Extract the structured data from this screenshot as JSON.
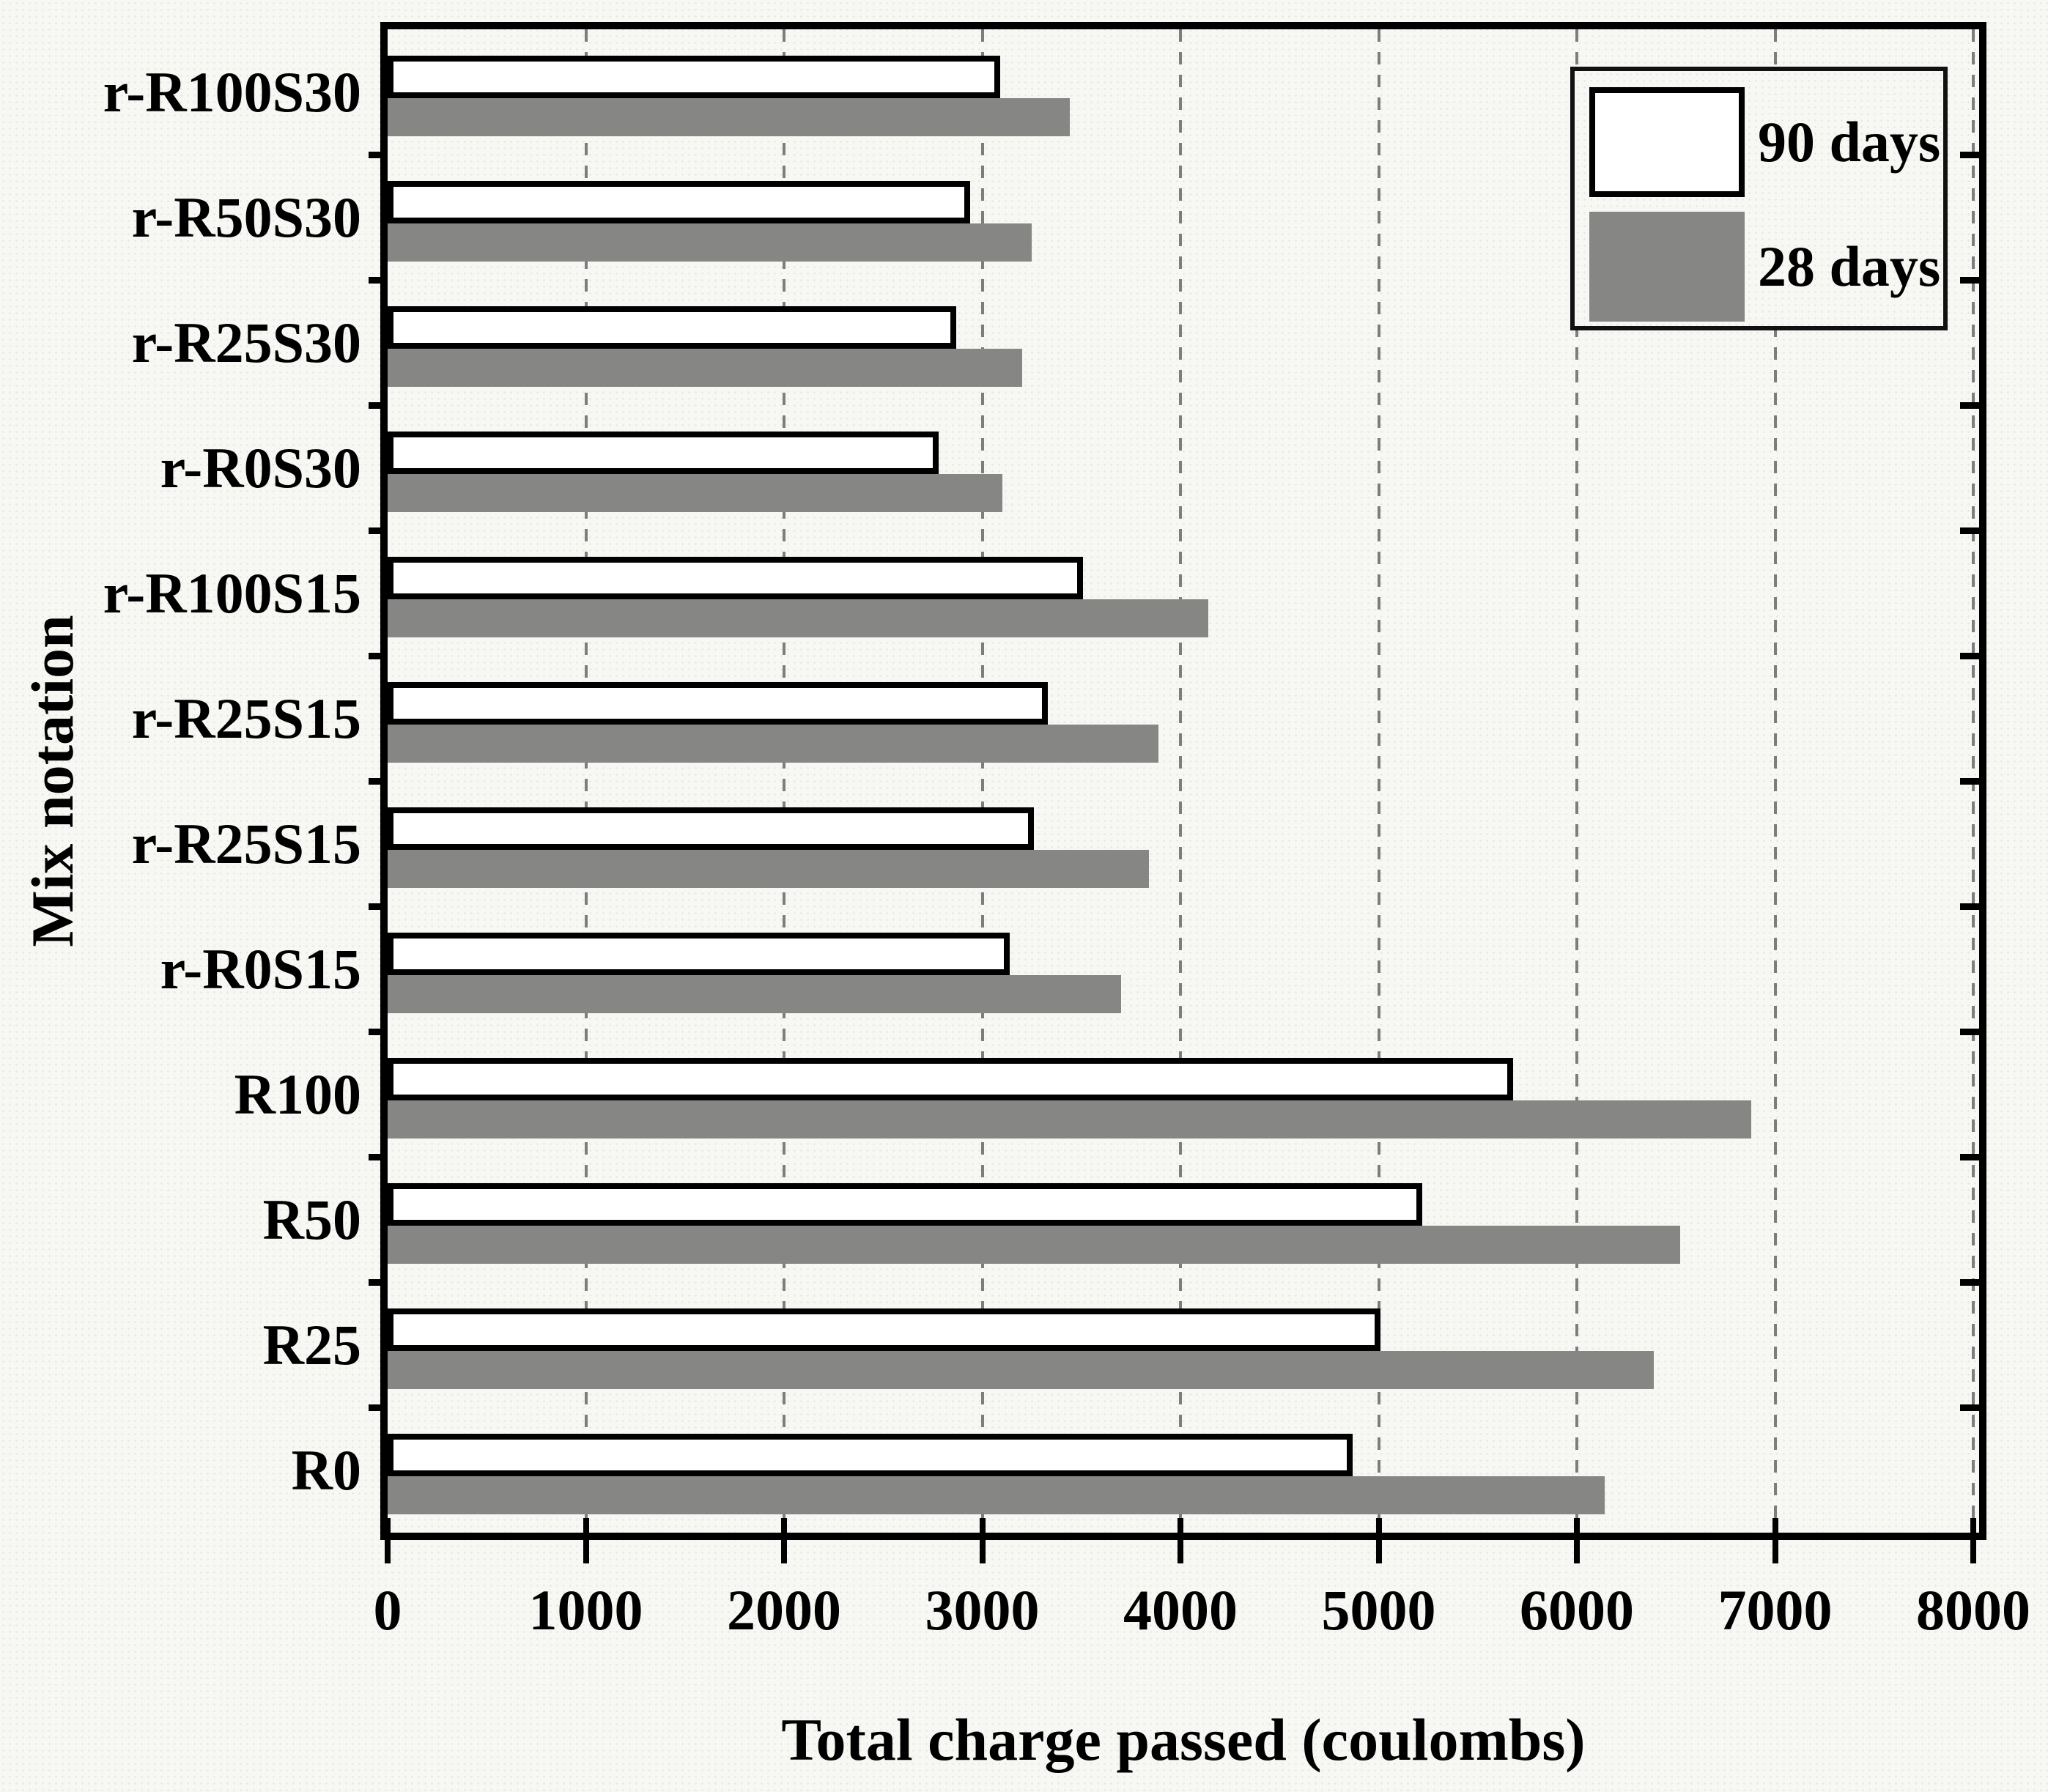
{
  "chart_data": {
    "type": "bar",
    "orientation": "horizontal",
    "title": "",
    "xlabel": "Total charge passed (coulombs)",
    "ylabel": "Mix notation",
    "xlim": [
      0,
      8000
    ],
    "x_ticks": [
      "0",
      "1000",
      "2000",
      "3000",
      "4000",
      "5000",
      "6000",
      "7000",
      "8000"
    ],
    "x_tick_values": [
      0,
      1000,
      2000,
      3000,
      4000,
      5000,
      6000,
      7000,
      8000
    ],
    "grid": "vertical dashed gray lines at every 1000, drawn behind bars",
    "legend_position": "top-right-inside",
    "category_order": "top-to-bottom",
    "categories": [
      "r-R100S30",
      "r-R50S30",
      "r-R25S30",
      "r-R0S30",
      "r-R100S15",
      "r-R25S15",
      "r-R25S15",
      "r-R0S15",
      "R100",
      "R50",
      "R25",
      "R0"
    ],
    "series": [
      {
        "name": "90 days",
        "fill": "#ffffff",
        "border": "#000000",
        "values": [
          3090,
          2940,
          2870,
          2780,
          3510,
          3330,
          3260,
          3140,
          5680,
          5220,
          5010,
          4870
        ]
      },
      {
        "name": "28 days",
        "fill": "#868684",
        "border": null,
        "values": [
          3440,
          3250,
          3200,
          3100,
          4140,
          3890,
          3840,
          3700,
          6880,
          6520,
          6390,
          6140
        ]
      }
    ]
  },
  "legend": {
    "entries": [
      {
        "label": "90 days",
        "fill": "#ffffff"
      },
      {
        "label": "28 days",
        "fill": "#868684"
      }
    ]
  },
  "colors": {
    "background": "#f7f7f4",
    "axis": "#000000",
    "gridline": "#7d7d7d",
    "bar_gray": "#868684",
    "bar_white": "#ffffff",
    "text": "#000000"
  }
}
